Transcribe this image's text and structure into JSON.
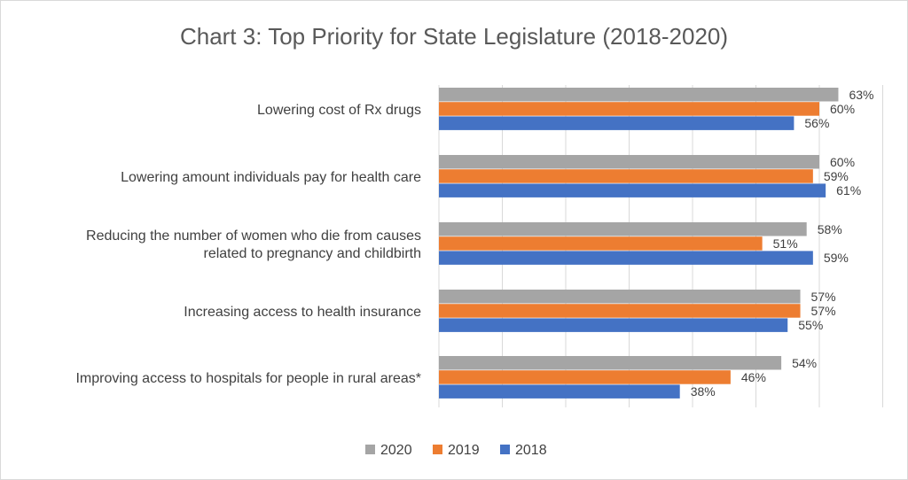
{
  "chart_data": {
    "type": "bar",
    "orientation": "horizontal",
    "title": "Chart 3: Top Priority for State Legislature (2018-2020)",
    "categories": [
      [
        "Lowering cost of Rx drugs"
      ],
      [
        "Lowering amount individuals pay for health care"
      ],
      [
        "Reducing the number of women who die from causes",
        "related to pregnancy and childbirth"
      ],
      [
        "Increasing access to health insurance"
      ],
      [
        "Improving access to hospitals for people in rural areas*"
      ]
    ],
    "series": [
      {
        "name": "2020",
        "color": "#a5a5a5",
        "values": [
          63,
          60,
          58,
          57,
          54
        ],
        "labels": [
          "63%",
          "60%",
          "58%",
          "57%",
          "54%"
        ]
      },
      {
        "name": "2019",
        "color": "#ed7d31",
        "values": [
          60,
          59,
          51,
          57,
          46
        ],
        "labels": [
          "60%",
          "59%",
          "51%",
          "57%",
          "46%"
        ]
      },
      {
        "name": "2018",
        "color": "#4472c4",
        "values": [
          56,
          61,
          59,
          55,
          38
        ],
        "labels": [
          "56%",
          "61%",
          "59%",
          "55%",
          "38%"
        ]
      }
    ],
    "xlim": [
      0,
      70
    ],
    "grid": true,
    "legend_position": "bottom"
  }
}
